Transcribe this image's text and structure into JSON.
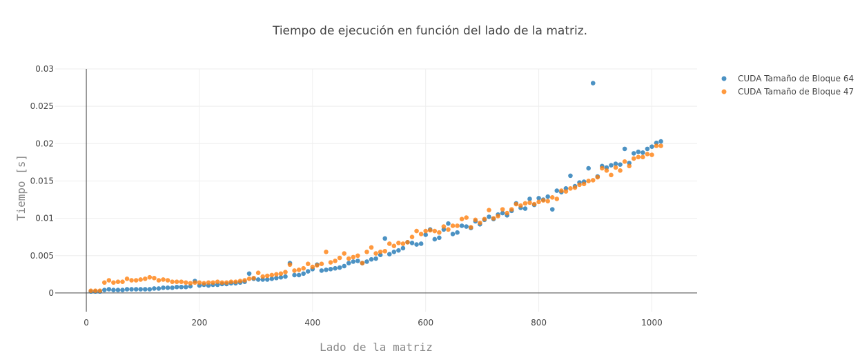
{
  "chart_data": {
    "type": "scatter",
    "title": "Tiempo de ejecución en función del lado de la matriz.",
    "xlabel": "Lado de la matriz",
    "ylabel": "Tiempo [s]",
    "xlim": [
      -55,
      1080
    ],
    "ylim": [
      -0.0025,
      0.03
    ],
    "xticks": [
      0,
      200,
      400,
      600,
      800,
      1000
    ],
    "yticks": [
      0,
      0.005,
      0.01,
      0.015,
      0.02,
      0.025,
      0.03
    ],
    "ytick_labels": [
      "0",
      "0.005",
      "0.01",
      "0.015",
      "0.02",
      "0.025",
      "0.03"
    ],
    "grid": true,
    "legend_position": "top-right",
    "series": [
      {
        "name": "CUDA Tamaño de Bloque 64",
        "color": "#1f77b4",
        "x": [
          8,
          16,
          24,
          32,
          40,
          48,
          56,
          64,
          72,
          80,
          88,
          96,
          104,
          112,
          120,
          128,
          136,
          144,
          152,
          160,
          168,
          176,
          184,
          192,
          200,
          208,
          216,
          224,
          232,
          240,
          248,
          256,
          264,
          272,
          280,
          288,
          296,
          304,
          312,
          320,
          328,
          336,
          344,
          352,
          360,
          368,
          376,
          384,
          392,
          400,
          408,
          416,
          424,
          432,
          440,
          448,
          456,
          464,
          472,
          480,
          488,
          496,
          504,
          512,
          520,
          528,
          536,
          544,
          552,
          560,
          568,
          576,
          584,
          592,
          600,
          608,
          616,
          624,
          632,
          640,
          648,
          656,
          664,
          672,
          680,
          688,
          696,
          704,
          712,
          720,
          728,
          736,
          744,
          752,
          760,
          768,
          776,
          784,
          792,
          800,
          808,
          816,
          824,
          832,
          840,
          848,
          856,
          864,
          872,
          880,
          888,
          896,
          904,
          912,
          920,
          928,
          936,
          944,
          952,
          960,
          968,
          976,
          984,
          992,
          1000,
          1008,
          1016
        ],
        "y": [
          0.0002,
          0.0002,
          0.0002,
          0.0004,
          0.0005,
          0.0004,
          0.0004,
          0.0004,
          0.0005,
          0.0005,
          0.0005,
          0.0005,
          0.0005,
          0.0005,
          0.0006,
          0.0006,
          0.0007,
          0.0007,
          0.0007,
          0.0008,
          0.0008,
          0.0008,
          0.0009,
          0.0016,
          0.001,
          0.0011,
          0.001,
          0.0011,
          0.0011,
          0.0012,
          0.0012,
          0.0013,
          0.0013,
          0.0014,
          0.0015,
          0.0026,
          0.0019,
          0.0018,
          0.0018,
          0.0018,
          0.0019,
          0.002,
          0.0021,
          0.0022,
          0.004,
          0.0024,
          0.0024,
          0.0026,
          0.0029,
          0.0032,
          0.0038,
          0.003,
          0.0031,
          0.0032,
          0.0033,
          0.0034,
          0.0036,
          0.004,
          0.0042,
          0.0043,
          0.004,
          0.0042,
          0.0045,
          0.0046,
          0.0051,
          0.0073,
          0.0052,
          0.0055,
          0.0057,
          0.006,
          0.0068,
          0.0067,
          0.0065,
          0.0066,
          0.0078,
          0.0085,
          0.0072,
          0.0074,
          0.0085,
          0.0093,
          0.0079,
          0.0081,
          0.009,
          0.0089,
          0.0087,
          0.0096,
          0.0092,
          0.0098,
          0.0102,
          0.0099,
          0.0105,
          0.0107,
          0.0104,
          0.011,
          0.012,
          0.0114,
          0.0113,
          0.0126,
          0.0118,
          0.0127,
          0.0125,
          0.0129,
          0.0112,
          0.0137,
          0.0135,
          0.014,
          0.0157,
          0.0143,
          0.0148,
          0.0149,
          0.0167,
          0.0281,
          0.0156,
          0.017,
          0.0168,
          0.0171,
          0.0173,
          0.0172,
          0.0193,
          0.0174,
          0.0187,
          0.0189,
          0.0188,
          0.0193,
          0.0196,
          0.0201,
          0.0203
        ]
      },
      {
        "name": "CUDA Tamaño de Bloque 47",
        "color": "#ff7f0e",
        "x": [
          8,
          16,
          24,
          32,
          40,
          48,
          56,
          64,
          72,
          80,
          88,
          96,
          104,
          112,
          120,
          128,
          136,
          144,
          152,
          160,
          168,
          176,
          184,
          192,
          200,
          208,
          216,
          224,
          232,
          240,
          248,
          256,
          264,
          272,
          280,
          288,
          296,
          304,
          312,
          320,
          328,
          336,
          344,
          352,
          360,
          368,
          376,
          384,
          392,
          400,
          408,
          416,
          424,
          432,
          440,
          448,
          456,
          464,
          472,
          480,
          488,
          496,
          504,
          512,
          520,
          528,
          536,
          544,
          552,
          560,
          568,
          576,
          584,
          592,
          600,
          608,
          616,
          624,
          632,
          640,
          648,
          656,
          664,
          672,
          680,
          688,
          696,
          704,
          712,
          720,
          728,
          736,
          744,
          752,
          760,
          768,
          776,
          784,
          792,
          800,
          808,
          816,
          824,
          832,
          840,
          848,
          856,
          864,
          872,
          880,
          888,
          896,
          904,
          912,
          920,
          928,
          936,
          944,
          952,
          960,
          968,
          976,
          984,
          992,
          1000,
          1008,
          1016
        ],
        "y": [
          0.0003,
          0.0003,
          0.0003,
          0.0014,
          0.0017,
          0.0014,
          0.0015,
          0.0015,
          0.0019,
          0.0017,
          0.0017,
          0.0018,
          0.0019,
          0.0021,
          0.002,
          0.0017,
          0.0018,
          0.0017,
          0.0015,
          0.0015,
          0.0015,
          0.0014,
          0.0013,
          0.0014,
          0.0014,
          0.0013,
          0.0014,
          0.0014,
          0.0015,
          0.0014,
          0.0014,
          0.0015,
          0.0015,
          0.0016,
          0.0017,
          0.0019,
          0.002,
          0.0027,
          0.0022,
          0.0023,
          0.0024,
          0.0025,
          0.0026,
          0.0028,
          0.0038,
          0.003,
          0.0031,
          0.0033,
          0.0039,
          0.0035,
          0.0037,
          0.0039,
          0.0055,
          0.0041,
          0.0043,
          0.0047,
          0.0053,
          0.0046,
          0.0048,
          0.005,
          0.004,
          0.0055,
          0.0061,
          0.0053,
          0.0055,
          0.0056,
          0.0066,
          0.0063,
          0.0067,
          0.0066,
          0.0068,
          0.0075,
          0.0083,
          0.0079,
          0.0083,
          0.0084,
          0.0083,
          0.0081,
          0.0089,
          0.0085,
          0.009,
          0.009,
          0.0099,
          0.0101,
          0.0088,
          0.0098,
          0.0094,
          0.0099,
          0.0111,
          0.01,
          0.0103,
          0.0112,
          0.0107,
          0.0112,
          0.0119,
          0.0117,
          0.012,
          0.0121,
          0.0119,
          0.0122,
          0.0124,
          0.0123,
          0.0128,
          0.0126,
          0.0137,
          0.0136,
          0.014,
          0.0141,
          0.0145,
          0.0146,
          0.015,
          0.0151,
          0.0155,
          0.0167,
          0.0164,
          0.0158,
          0.0168,
          0.0164,
          0.0176,
          0.017,
          0.018,
          0.0182,
          0.0182,
          0.0186,
          0.0185,
          0.0197,
          0.0197
        ]
      }
    ]
  }
}
